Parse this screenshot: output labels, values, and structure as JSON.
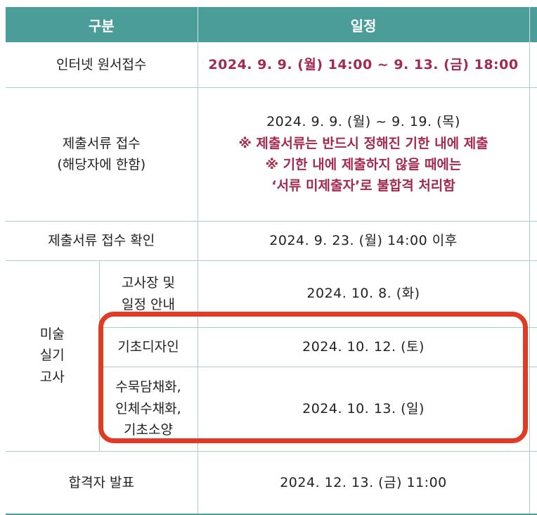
{
  "header": {
    "category": "구분",
    "schedule": "일정"
  },
  "rows": {
    "online_application": {
      "label": "인터넷 원서접수",
      "date": "2024. 9. 9. (월) 14:00 ~ 9. 13. (금) 18:00"
    },
    "document_submission": {
      "label_line1": "제출서류 접수",
      "label_line2": "(해당자에 한함)",
      "date": "2024. 9. 9. (월) ~ 9. 19. (목)",
      "note1": "※ 제출서류는 반드시 정해진 기한 내에 제출",
      "note2": "※ 기한 내에 제출하지 않을 때에는",
      "note3": "‘서류 미제출자’로 불합격 처리함"
    },
    "document_confirmation": {
      "label": "제출서류 접수 확인",
      "date": "2024. 9. 23. (월) 14:00 이후"
    },
    "art_exam": {
      "group_line1": "미술",
      "group_line2": "실기",
      "group_line3": "고사",
      "venue_notice": {
        "label_line1": "고사장 및",
        "label_line2": "일정 안내",
        "date": "2024. 10. 8. (화)"
      },
      "basic_design": {
        "label": "기초디자인",
        "date": "2024. 10. 12. (토)"
      },
      "painting": {
        "label_line1": "수묵담채화,",
        "label_line2": "인체수채화,",
        "label_line3": "기초소양",
        "date": "2024. 10. 13. (일)"
      }
    },
    "result_announcement": {
      "label": "합격자 발표",
      "date": "2024. 12. 13. (금) 11:00"
    }
  },
  "colors": {
    "header_bg": "#4a9d98",
    "accent_text": "#a32a4e",
    "highlight_border": "#e03b24",
    "grid_line": "#a9cfcc"
  }
}
